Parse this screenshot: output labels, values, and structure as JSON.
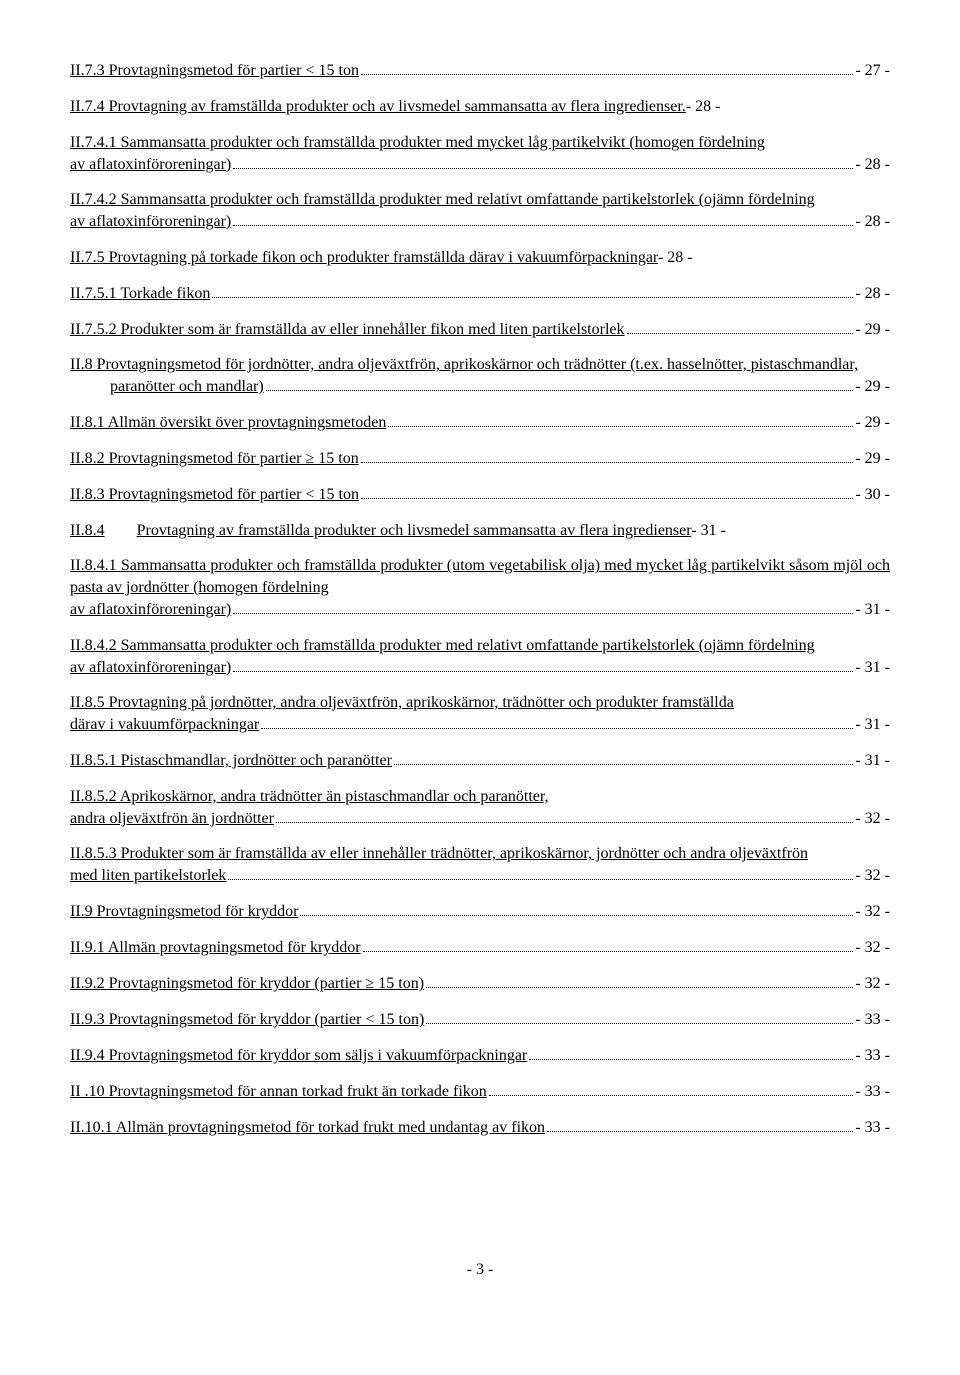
{
  "entries": [
    {
      "label": "II.7.3 Provtagningsmetod för partier < 15 ton",
      "page": "- 27 -",
      "type": "dots"
    },
    {
      "label": "II.7.4 Provtagning av framställda produkter och av livsmedel sammansatta av flera ingredienser.",
      "page": "- 28 -",
      "type": "nobr"
    },
    {
      "label": "II.7.4.1 Sammansatta produkter och framställda produkter med mycket låg partikelvikt (homogen fördelning av aflatoxinföroreningar)",
      "page": "- 28 -",
      "type": "dots-wrap"
    },
    {
      "label": "II.7.4.2 Sammansatta produkter och framställda produkter med relativt omfattande partikelstorlek (ojämn fördelning av aflatoxinföroreningar)",
      "page": "- 28 -",
      "type": "dots-wrap"
    },
    {
      "label": "II.7.5 Provtagning på torkade fikon och produkter framställda därav i vakuumförpackningar",
      "page": "- 28 -",
      "type": "plain"
    },
    {
      "label": "II.7.5.1 Torkade fikon",
      "page": "- 28 -",
      "type": "dots"
    },
    {
      "label": "II.7.5.2 Produkter som är framställda av eller innehåller fikon med liten partikelstorlek",
      "page": "- 29 -",
      "type": "dots"
    },
    {
      "label": "II.8 Provtagningsmetod för jordnötter, andra oljeväxtfrön, aprikoskärnor och trädnötter (t.ex. hasselnötter, pistaschmandlar, paranötter och mandlar)",
      "page": "- 29 -",
      "type": "dots-wrap-indent"
    },
    {
      "label": "II.8.1 Allmän översikt över provtagningsmetoden",
      "page": "- 29 -",
      "type": "dots"
    },
    {
      "label": "II.8.2 Provtagningsmetod för partier ≥ 15 ton",
      "page": "- 29 -",
      "type": "dots"
    },
    {
      "label": "II.8.3 Provtagningsmetod för partier < 15 ton",
      "page": "- 30 -",
      "type": "dots"
    },
    {
      "label_pre": "II.8.4",
      "label": "Provtagning av framställda produkter och livsmedel sammansatta av flera ingredienser",
      "page": "- 31 -",
      "type": "tab-plain"
    },
    {
      "label": "II.8.4.1 Sammansatta produkter och framställda produkter (utom vegetabilisk olja) med mycket låg partikelvikt såsom mjöl och pasta av jordnötter (homogen fördelning av aflatoxinföroreningar)",
      "page": "- 31 -",
      "type": "dots-wrap"
    },
    {
      "label": "II.8.4.2 Sammansatta produkter och framställda produkter med relativt omfattande partikelstorlek (ojämn fördelning av aflatoxinföroreningar)",
      "page": "- 31 -",
      "type": "dots-wrap"
    },
    {
      "label": "II.8.5 Provtagning på jordnötter, andra oljeväxtfrön, aprikoskärnor, trädnötter och produkter framställda därav i vakuumförpackningar",
      "page": "- 31 -",
      "type": "dots-wrap"
    },
    {
      "label": "II.8.5.1 Pistaschmandlar, jordnötter och paranötter",
      "page": "- 31 -",
      "type": "dots"
    },
    {
      "label": "II.8.5.2 Aprikoskärnor, andra trädnötter än pistaschmandlar och paranötter, andra oljeväxtfrön än jordnötter",
      "page": "- 32 -",
      "type": "dots-wrap"
    },
    {
      "label": "II.8.5.3 Produkter som är framställda av eller innehåller trädnötter, aprikoskärnor, jordnötter och andra oljeväxtfrön med liten partikelstorlek",
      "page": "- 32 -",
      "type": "dots-wrap"
    },
    {
      "label": "II.9 Provtagningsmetod för kryddor",
      "page": "- 32 -",
      "type": "dots"
    },
    {
      "label": "II.9.1 Allmän provtagningsmetod för kryddor",
      "page": "- 32 -",
      "type": "dots"
    },
    {
      "label": "II.9.2 Provtagningsmetod för kryddor (partier ≥ 15 ton)",
      "page": "- 32 -",
      "type": "dots"
    },
    {
      "label": "II.9.3 Provtagningsmetod för kryddor (partier < 15 ton)",
      "page": "- 33 -",
      "type": "dots"
    },
    {
      "label": "II.9.4 Provtagningsmetod för kryddor som säljs i vakuumförpackningar",
      "page": "- 33 -",
      "type": "dots"
    },
    {
      "label": "II .10 Provtagningsmetod för annan torkad frukt än torkade fikon",
      "page": "- 33 -",
      "type": "dots"
    },
    {
      "label": "II.10.1 Allmän provtagningsmetod för torkad frukt med undantag av fikon",
      "page": "- 33 -",
      "type": "dots"
    }
  ],
  "footer": "- 3 -"
}
